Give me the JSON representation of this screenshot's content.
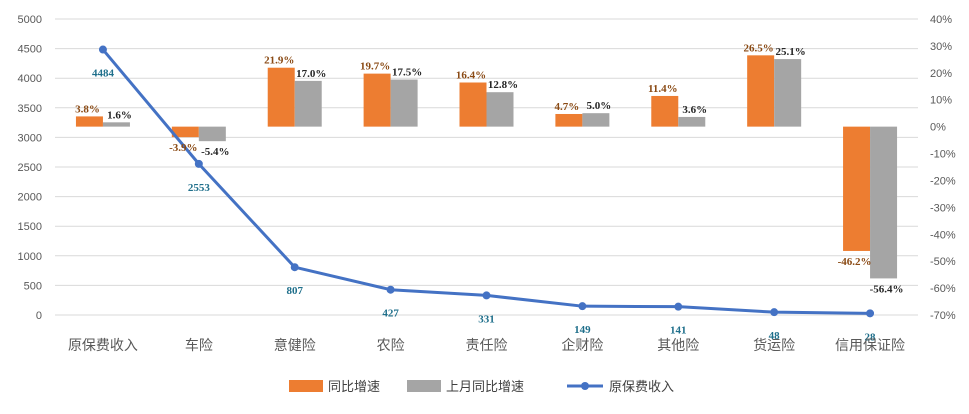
{
  "chart_data": {
    "type": "bar+line",
    "categories": [
      "原保费收入",
      "车险",
      "意健险",
      "农险",
      "责任险",
      "企财险",
      "其他险",
      "货运险",
      "信用保证险"
    ],
    "series": [
      {
        "name": "同比增速",
        "type": "bar",
        "axis": "right",
        "color": "#ED7D31",
        "values": [
          3.8,
          -3.9,
          21.9,
          19.7,
          16.4,
          4.7,
          11.4,
          26.5,
          -46.2
        ],
        "labels": [
          "3.8%",
          "-3.9%",
          "21.9%",
          "19.7%",
          "16.4%",
          "4.7%",
          "11.4%",
          "26.5%",
          "-46.2%"
        ]
      },
      {
        "name": "上月同比增速",
        "type": "bar",
        "axis": "right",
        "color": "#A5A5A5",
        "values": [
          1.6,
          -5.4,
          17.0,
          17.5,
          12.8,
          5.0,
          3.6,
          25.1,
          -56.4
        ],
        "labels": [
          "1.6%",
          "-5.4%",
          "17.0%",
          "17.5%",
          "12.8%",
          "5.0%",
          "3.6%",
          "25.1%",
          "-56.4%"
        ]
      },
      {
        "name": "原保费收入",
        "type": "line",
        "axis": "left",
        "color": "#4472C4",
        "values": [
          4484,
          2553,
          807,
          427,
          331,
          149,
          141,
          48,
          28
        ],
        "labels": [
          "4484",
          "2553",
          "807",
          "427",
          "331",
          "149",
          "141",
          "48",
          "28"
        ]
      }
    ],
    "y_left": {
      "min": 0,
      "max": 5000,
      "step": 500,
      "ticks": [
        "0",
        "500",
        "1000",
        "1500",
        "2000",
        "2500",
        "3000",
        "3500",
        "4000",
        "4500",
        "5000"
      ]
    },
    "y_right": {
      "min": -70,
      "max": 40,
      "step": 10,
      "ticks": [
        "-70%",
        "-60%",
        "-50%",
        "-40%",
        "-30%",
        "-20%",
        "-10%",
        "0%",
        "10%",
        "20%",
        "30%",
        "40%"
      ]
    },
    "grid": true,
    "legend_position": "bottom"
  }
}
